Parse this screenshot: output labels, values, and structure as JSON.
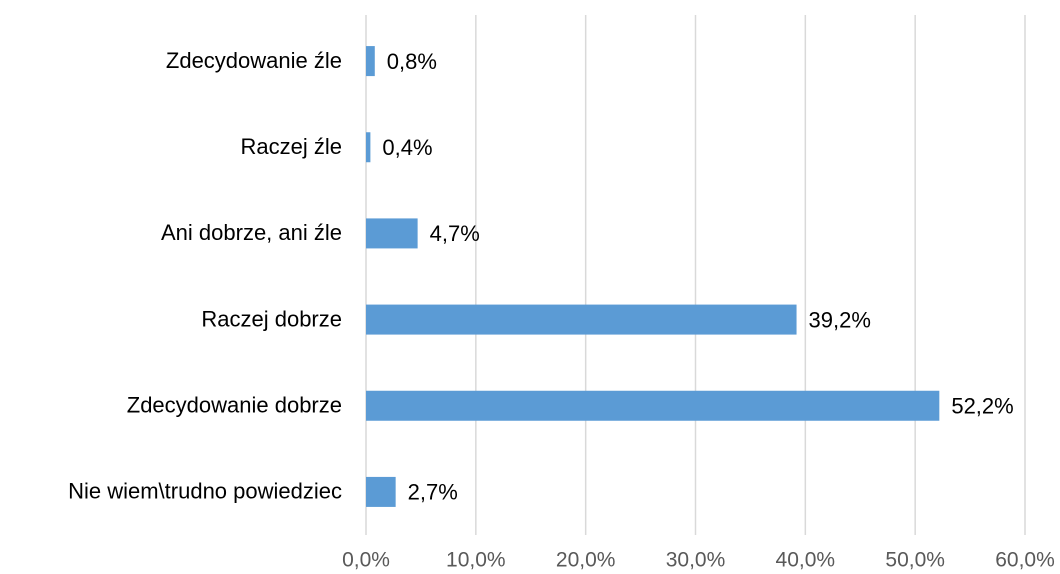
{
  "chart_data": {
    "type": "bar",
    "orientation": "horizontal",
    "categories": [
      "Zdecydowanie źle",
      "Raczej źle",
      "Ani dobrze, ani źle",
      "Raczej dobrze",
      "Zdecydowanie dobrze",
      "Nie wiem\\trudno powiedziec"
    ],
    "values": [
      0.8,
      0.4,
      4.7,
      39.2,
      52.2,
      2.7
    ],
    "value_labels": [
      "0,8%",
      "0,4%",
      "4,7%",
      "39,2%",
      "52,2%",
      "2,7%"
    ],
    "color": "#5b9bd5",
    "xlim": [
      0,
      60
    ],
    "xticks": [
      {
        "value": 0,
        "label": "0,0%"
      },
      {
        "value": 10,
        "label": "10,0%"
      },
      {
        "value": 20,
        "label": "20,0%"
      },
      {
        "value": 30,
        "label": "30,0%"
      },
      {
        "value": 40,
        "label": "40,0%"
      },
      {
        "value": 50,
        "label": "50,0%"
      },
      {
        "value": 60,
        "label": "60,0%"
      }
    ],
    "grid": true
  }
}
